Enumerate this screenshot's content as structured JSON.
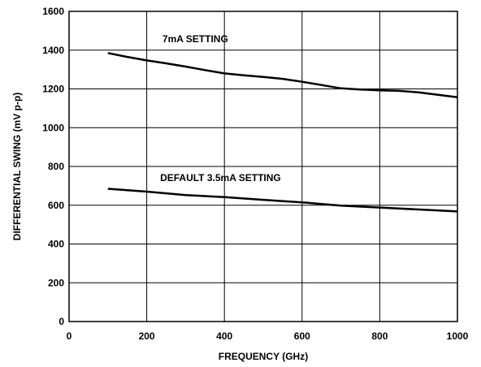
{
  "chart_data": {
    "type": "line",
    "xlabel": "FREQUENCY (GHz)",
    "ylabel": "DIFFERENTIAL SWING (mV p-p)",
    "xlim": [
      0,
      1000
    ],
    "ylim": [
      0,
      1600
    ],
    "xticks": [
      0,
      200,
      400,
      600,
      800,
      1000
    ],
    "yticks": [
      0,
      200,
      400,
      600,
      800,
      1000,
      1200,
      1400,
      1600
    ],
    "grid": true,
    "series": [
      {
        "name": "7mA SETTING",
        "x": [
          100,
          150,
          200,
          250,
          300,
          350,
          400,
          450,
          500,
          550,
          600,
          650,
          700,
          750,
          800,
          850,
          900,
          950,
          1000
        ],
        "y": [
          1385,
          1365,
          1347,
          1332,
          1315,
          1297,
          1280,
          1270,
          1262,
          1252,
          1237,
          1220,
          1203,
          1197,
          1193,
          1190,
          1182,
          1170,
          1157
        ]
      },
      {
        "name": "DEFAULT 3.5mA SETTING",
        "x": [
          100,
          200,
          300,
          400,
          500,
          600,
          700,
          800,
          900,
          1000
        ],
        "y": [
          685,
          670,
          652,
          642,
          628,
          615,
          598,
          588,
          578,
          568
        ]
      }
    ],
    "annotations": [
      {
        "text": "7mA SETTING",
        "x": 325,
        "y": 1440
      },
      {
        "text": "DEFAULT 3.5mA SETTING",
        "x": 390,
        "y": 725
      }
    ]
  }
}
